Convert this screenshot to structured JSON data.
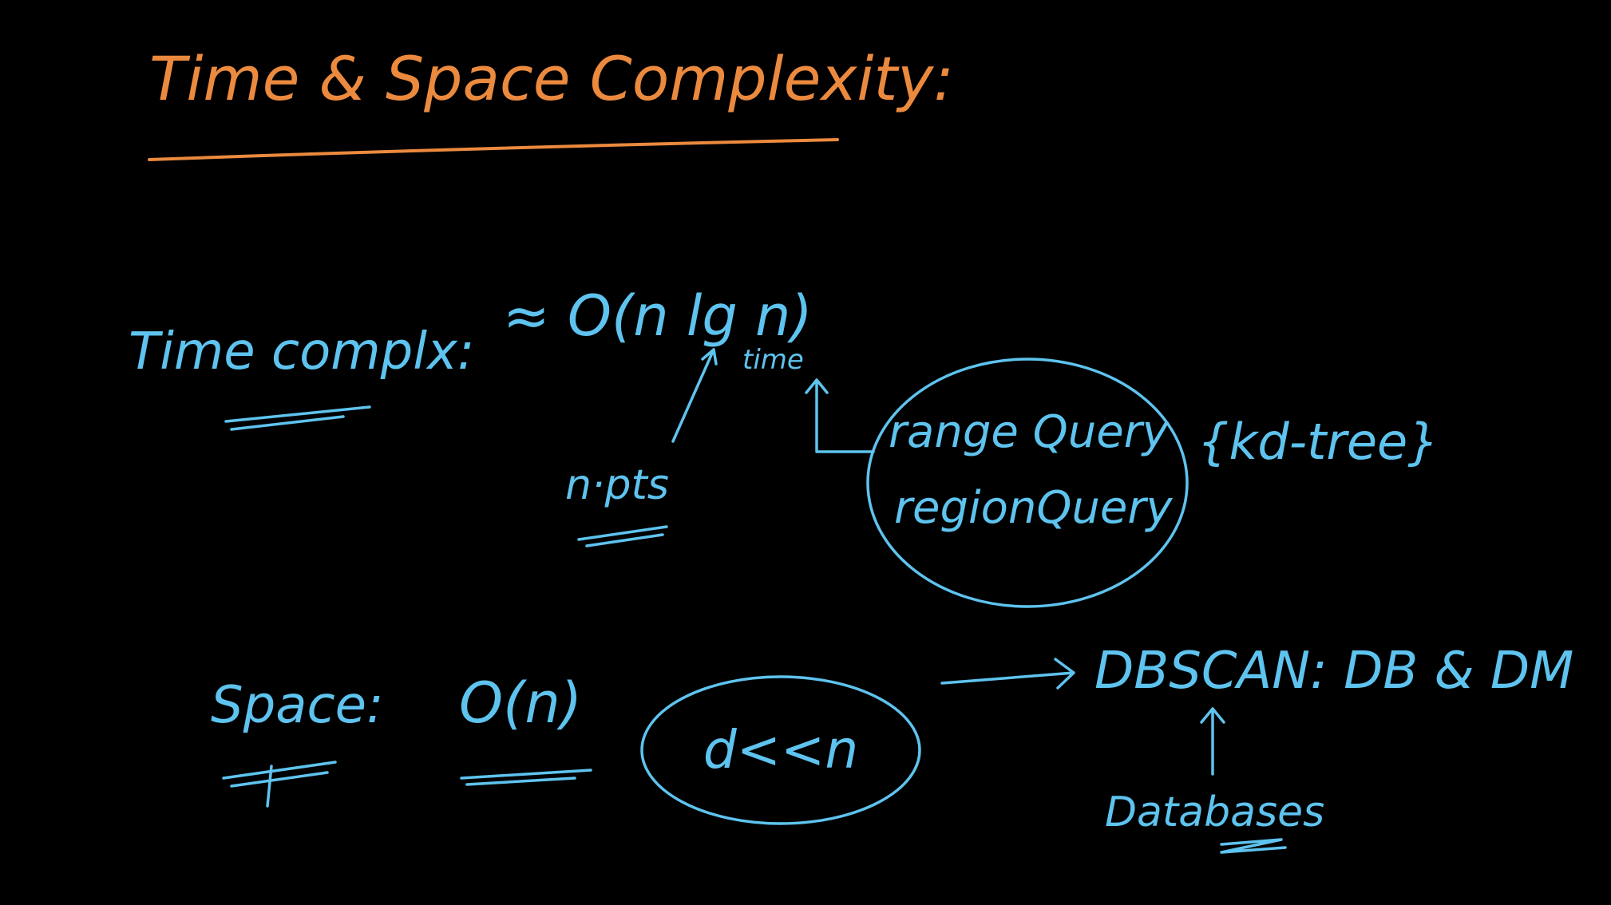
{
  "title": "Time & Space Complexity:",
  "time": {
    "label": "Time complx:",
    "value": "≈ O(n lg n)",
    "n_note": "n·pts",
    "lgn_note": "time"
  },
  "query_box": {
    "line1": "range Query",
    "line2": "regionQuery",
    "structure": "{kd-tree}"
  },
  "space": {
    "label": "Space:",
    "value": "O(n)",
    "note": "d<<n"
  },
  "dbscan": {
    "label": "DBSCAN: DB & DM",
    "note": "Databases"
  }
}
